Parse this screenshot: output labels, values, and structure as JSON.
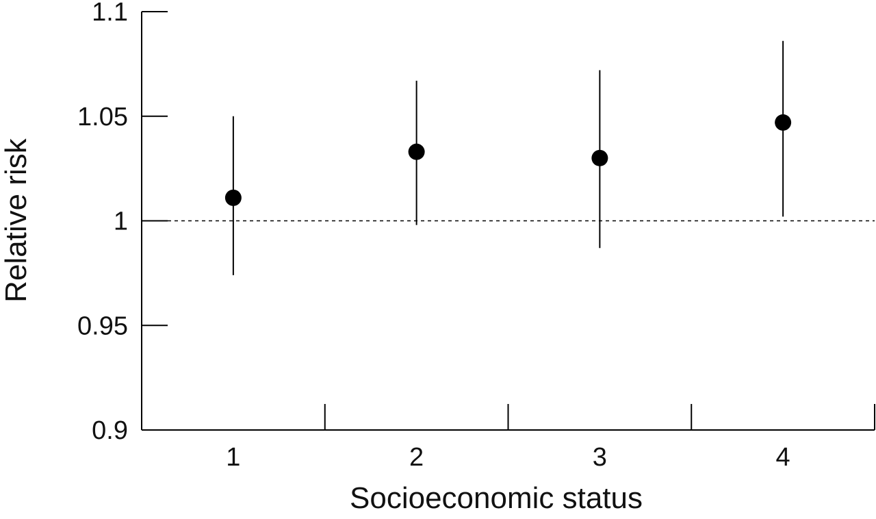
{
  "chart_data": {
    "type": "scatter",
    "title": "",
    "xlabel": "Socioeconomic status",
    "ylabel": "Relative risk",
    "categories": [
      "1",
      "2",
      "3",
      "4"
    ],
    "ylim": [
      0.9,
      1.1
    ],
    "yticks": [
      "0.9",
      "0.95",
      "1",
      "1.05",
      "1.1"
    ],
    "reference_line": 1.0,
    "grid": false,
    "series": [
      {
        "values": [
          1.011,
          1.033,
          1.03,
          1.047
        ],
        "ci_lower": [
          0.974,
          0.998,
          0.987,
          1.002
        ],
        "ci_upper": [
          1.05,
          1.067,
          1.072,
          1.086
        ]
      }
    ]
  }
}
